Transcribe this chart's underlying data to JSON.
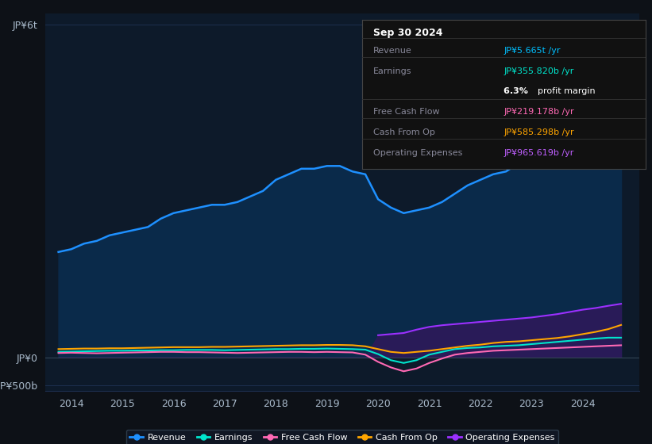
{
  "bg_color": "#0d1117",
  "plot_bg_color": "#0d1a2a",
  "grid_color": "#1e3050",
  "y_labels": [
    "JP¥6t",
    "JP¥0",
    "-JP¥500b"
  ],
  "x_labels": [
    "2014",
    "2015",
    "2016",
    "2017",
    "2018",
    "2019",
    "2020",
    "2021",
    "2022",
    "2023",
    "2024"
  ],
  "years": [
    2013.75,
    2014.0,
    2014.25,
    2014.5,
    2014.75,
    2015.0,
    2015.25,
    2015.5,
    2015.75,
    2016.0,
    2016.25,
    2016.5,
    2016.75,
    2017.0,
    2017.25,
    2017.5,
    2017.75,
    2018.0,
    2018.25,
    2018.5,
    2018.75,
    2019.0,
    2019.25,
    2019.5,
    2019.75,
    2020.0,
    2020.25,
    2020.5,
    2020.75,
    2021.0,
    2021.25,
    2021.5,
    2021.75,
    2022.0,
    2022.25,
    2022.5,
    2022.75,
    2023.0,
    2023.25,
    2023.5,
    2023.75,
    2024.0,
    2024.25,
    2024.5,
    2024.75
  ],
  "revenue": [
    1900,
    1950,
    2050,
    2100,
    2200,
    2250,
    2300,
    2350,
    2500,
    2600,
    2650,
    2700,
    2750,
    2750,
    2800,
    2900,
    3000,
    3200,
    3300,
    3400,
    3400,
    3450,
    3450,
    3350,
    3300,
    2850,
    2700,
    2600,
    2650,
    2700,
    2800,
    2950,
    3100,
    3200,
    3300,
    3350,
    3500,
    3700,
    4000,
    4300,
    4600,
    5000,
    5200,
    5500,
    5665
  ],
  "earnings": [
    100,
    105,
    110,
    115,
    120,
    120,
    125,
    125,
    130,
    130,
    135,
    135,
    135,
    130,
    135,
    140,
    145,
    150,
    150,
    155,
    155,
    160,
    155,
    150,
    140,
    60,
    -50,
    -100,
    -50,
    50,
    100,
    150,
    170,
    180,
    200,
    210,
    220,
    240,
    260,
    280,
    300,
    320,
    340,
    356,
    356
  ],
  "free_cash_flow": [
    80,
    85,
    80,
    75,
    80,
    85,
    90,
    95,
    100,
    100,
    95,
    95,
    90,
    85,
    80,
    85,
    90,
    95,
    100,
    100,
    95,
    100,
    95,
    90,
    50,
    -80,
    -180,
    -250,
    -200,
    -100,
    -20,
    50,
    80,
    100,
    120,
    130,
    140,
    150,
    160,
    170,
    180,
    190,
    200,
    210,
    219
  ],
  "cash_from_op": [
    150,
    155,
    160,
    160,
    165,
    165,
    170,
    175,
    180,
    185,
    185,
    185,
    190,
    190,
    195,
    200,
    205,
    210,
    215,
    220,
    220,
    225,
    225,
    220,
    200,
    150,
    100,
    80,
    100,
    120,
    150,
    180,
    210,
    230,
    260,
    280,
    290,
    310,
    330,
    350,
    380,
    420,
    460,
    510,
    585
  ],
  "operating_expenses": [
    0,
    0,
    0,
    0,
    0,
    0,
    0,
    0,
    0,
    0,
    0,
    0,
    0,
    0,
    0,
    0,
    0,
    0,
    0,
    0,
    0,
    0,
    0,
    0,
    0,
    400,
    420,
    440,
    500,
    550,
    580,
    600,
    620,
    640,
    660,
    680,
    700,
    720,
    750,
    780,
    820,
    860,
    890,
    930,
    966
  ],
  "revenue_color": "#1e90ff",
  "revenue_fill": "#0a2a4a",
  "earnings_color": "#00e5cc",
  "free_cash_flow_color": "#ff69b4",
  "cash_from_op_color": "#ffa500",
  "operating_expenses_color": "#9b30ff",
  "operating_expenses_fill": "#2d1a5a",
  "legend": [
    {
      "label": "Revenue",
      "color": "#1e90ff"
    },
    {
      "label": "Earnings",
      "color": "#00e5cc"
    },
    {
      "label": "Free Cash Flow",
      "color": "#ff69b4"
    },
    {
      "label": "Cash From Op",
      "color": "#ffa500"
    },
    {
      "label": "Operating Expenses",
      "color": "#9b30ff"
    }
  ],
  "box_date": "Sep 30 2024",
  "box_rows": [
    {
      "label": "Revenue",
      "value": "JP¥5.665t /yr",
      "value_color": "#00bfff",
      "bold_prefix": ""
    },
    {
      "label": "Earnings",
      "value": "JP¥355.820b /yr",
      "value_color": "#00e5cc",
      "bold_prefix": ""
    },
    {
      "label": "",
      "value": "profit margin",
      "value_color": "#ffffff",
      "bold_prefix": "6.3%"
    },
    {
      "label": "Free Cash Flow",
      "value": "JP¥219.178b /yr",
      "value_color": "#ff69b4",
      "bold_prefix": ""
    },
    {
      "label": "Cash From Op",
      "value": "JP¥585.298b /yr",
      "value_color": "#ffa500",
      "bold_prefix": ""
    },
    {
      "label": "Operating Expenses",
      "value": "JP¥965.619b /yr",
      "value_color": "#bf5fff",
      "bold_prefix": ""
    }
  ]
}
